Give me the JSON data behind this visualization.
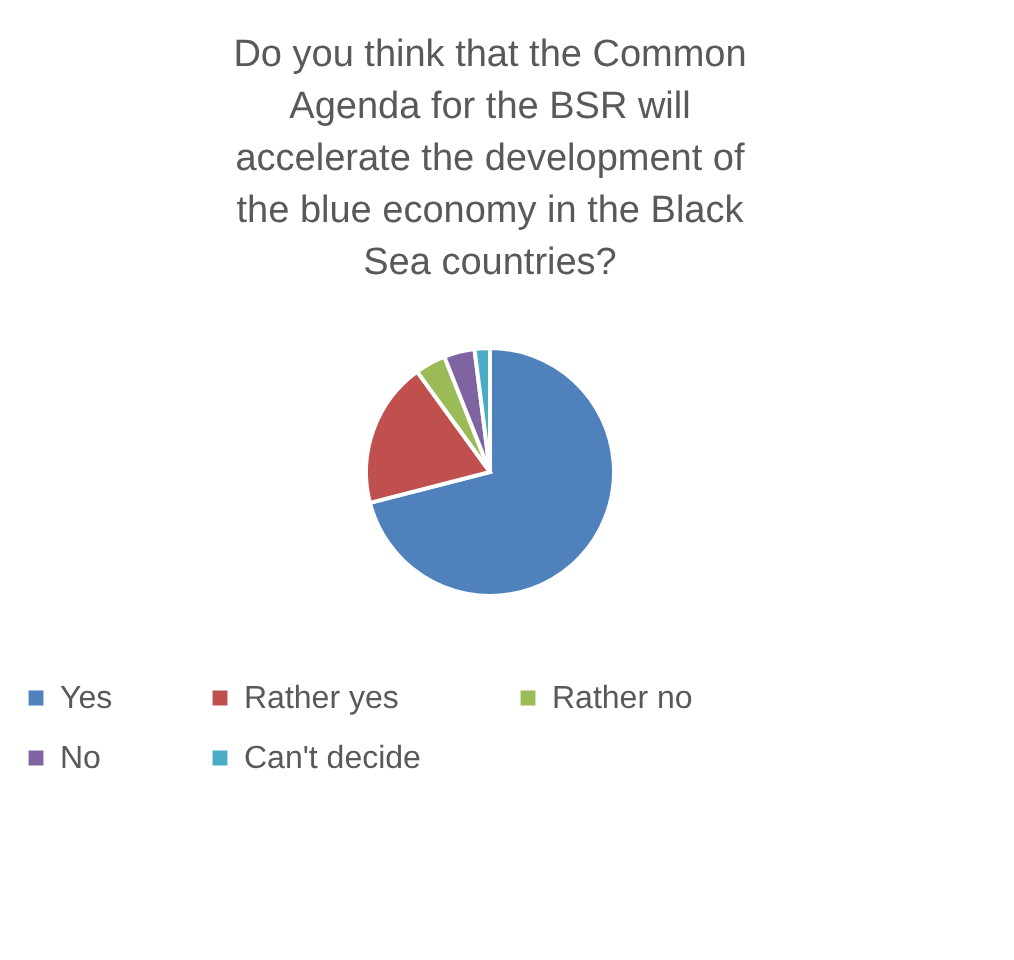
{
  "chart_data": {
    "type": "pie",
    "title": "Do you think that the Common Agenda for the BSR will accelerate the development of the blue economy in the Black Sea countries?",
    "categories": [
      "Yes",
      "Rather yes",
      "Rather no",
      "No",
      "Can't decide"
    ],
    "values": [
      71,
      19,
      4,
      4,
      2
    ],
    "colors": [
      "#4f81bd",
      "#c0504d",
      "#9bbb59",
      "#8064a2",
      "#4bacc6"
    ],
    "legend": "bottom"
  }
}
